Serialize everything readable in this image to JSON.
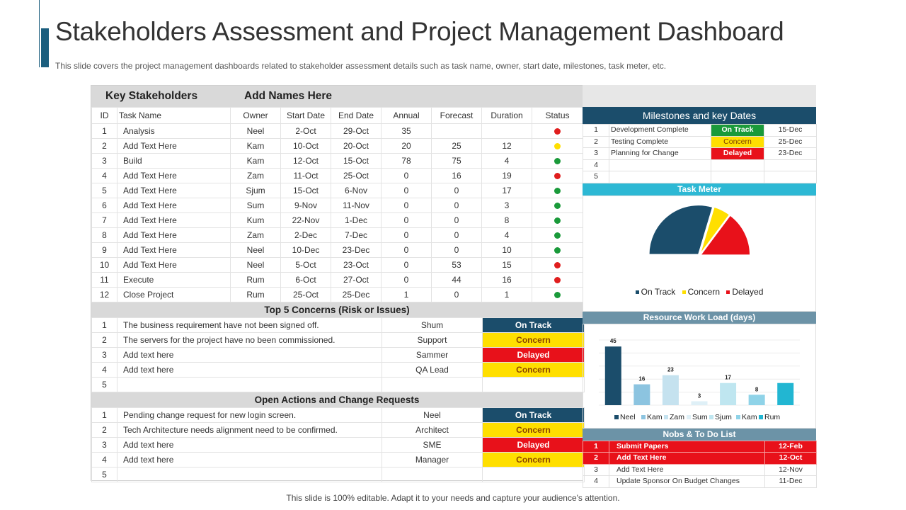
{
  "header": {
    "title": "Stakeholders Assessment and Project Management Dashboard",
    "subtitle": "This slide covers the project management dashboards related to stakeholder assessment details such as task name, owner, start date, milestones, task meter, etc."
  },
  "footer": {
    "text": "This slide is 100% editable. Adapt it to your needs and capture your audience's attention."
  },
  "stakeholders": {
    "label": "Key Stakeholders",
    "names": "Add Names Here",
    "columns": [
      "ID",
      "Task Name",
      "Owner",
      "Start Date",
      "End Date",
      "Annual",
      "Forecast",
      "Duration",
      "Status"
    ],
    "rows": [
      {
        "id": "1",
        "task": "Analysis",
        "owner": "Neel",
        "start": "2-Oct",
        "end": "29-Oct",
        "annual": "35",
        "forecast": "",
        "duration": "",
        "status": "red"
      },
      {
        "id": "2",
        "task": "Add Text Here",
        "owner": "Kam",
        "start": "10-Oct",
        "end": "20-Oct",
        "annual": "20",
        "forecast": "25",
        "duration": "12",
        "status": "yellow"
      },
      {
        "id": "3",
        "task": "Build",
        "owner": "Kam",
        "start": "12-Oct",
        "end": "15-Oct",
        "annual": "78",
        "forecast": "75",
        "duration": "4",
        "status": "green"
      },
      {
        "id": "4",
        "task": "Add Text Here",
        "owner": "Zam",
        "start": "11-Oct",
        "end": "25-Oct",
        "annual": "0",
        "forecast": "16",
        "duration": "19",
        "status": "red"
      },
      {
        "id": "5",
        "task": "Add Text Here",
        "owner": "Sjum",
        "start": "15-Oct",
        "end": "6-Nov",
        "annual": "0",
        "forecast": "0",
        "duration": "17",
        "status": "green"
      },
      {
        "id": "6",
        "task": "Add Text Here",
        "owner": "Sum",
        "start": "9-Nov",
        "end": "11-Nov",
        "annual": "0",
        "forecast": "0",
        "duration": "3",
        "status": "green"
      },
      {
        "id": "7",
        "task": "Add Text Here",
        "owner": "Kum",
        "start": "22-Nov",
        "end": "1-Dec",
        "annual": "0",
        "forecast": "0",
        "duration": "8",
        "status": "green"
      },
      {
        "id": "8",
        "task": "Add Text Here",
        "owner": "Zam",
        "start": "2-Dec",
        "end": "7-Dec",
        "annual": "0",
        "forecast": "0",
        "duration": "4",
        "status": "green"
      },
      {
        "id": "9",
        "task": "Add Text Here",
        "owner": "Neel",
        "start": "10-Dec",
        "end": "23-Dec",
        "annual": "0",
        "forecast": "0",
        "duration": "10",
        "status": "green"
      },
      {
        "id": "10",
        "task": "Add Text Here",
        "owner": "Neel",
        "start": "5-Oct",
        "end": "23-Oct",
        "annual": "0",
        "forecast": "53",
        "duration": "15",
        "status": "red"
      },
      {
        "id": "11",
        "task": "Execute",
        "owner": "Rum",
        "start": "6-Oct",
        "end": "27-Oct",
        "annual": "0",
        "forecast": "44",
        "duration": "16",
        "status": "red"
      },
      {
        "id": "12",
        "task": "Close Project",
        "owner": "Rum",
        "start": "25-Oct",
        "end": "25-Dec",
        "annual": "1",
        "forecast": "0",
        "duration": "1",
        "status": "green"
      }
    ]
  },
  "concerns": {
    "title": "Top 5 Concerns (Risk or Issues)",
    "rows": [
      {
        "id": "1",
        "text": "The business requirement have not been signed off.",
        "owner": "Shum",
        "status": "On Track",
        "kind": "ontrack"
      },
      {
        "id": "2",
        "text": "The servers for the project have no been commissioned.",
        "owner": "Support",
        "status": "Concern",
        "kind": "concern"
      },
      {
        "id": "3",
        "text": "Add text here",
        "owner": "Sammer",
        "status": "Delayed",
        "kind": "delayed"
      },
      {
        "id": "4",
        "text": "Add text here",
        "owner": "QA Lead",
        "status": "Concern",
        "kind": "concern"
      },
      {
        "id": "5",
        "text": "",
        "owner": "",
        "status": "",
        "kind": ""
      }
    ]
  },
  "actions": {
    "title": "Open Actions and Change Requests",
    "rows": [
      {
        "id": "1",
        "text": "Pending change request for new login screen.",
        "owner": "Neel",
        "status": "On Track",
        "kind": "ontrack"
      },
      {
        "id": "2",
        "text": "Tech Architecture needs alignment need to be confirmed.",
        "owner": "Architect",
        "status": "Concern",
        "kind": "concern"
      },
      {
        "id": "3",
        "text": "Add text here",
        "owner": "SME",
        "status": "Delayed",
        "kind": "delayed"
      },
      {
        "id": "4",
        "text": "Add text here",
        "owner": "Manager",
        "status": "Concern",
        "kind": "concern"
      },
      {
        "id": "5",
        "text": "",
        "owner": "",
        "status": "",
        "kind": ""
      }
    ]
  },
  "milestones": {
    "title": "Milestones and key Dates",
    "rows": [
      {
        "id": "1",
        "name": "Development Complete",
        "status": "On Track",
        "kind": "ontrack",
        "date": "15-Dec"
      },
      {
        "id": "2",
        "name": "Testing Complete",
        "status": "Concern",
        "kind": "concern",
        "date": "25-Dec"
      },
      {
        "id": "3",
        "name": "Planning  for Change",
        "status": "Delayed",
        "kind": "delayed",
        "date": "23-Dec"
      },
      {
        "id": "4",
        "name": "",
        "status": "",
        "kind": "",
        "date": ""
      },
      {
        "id": "5",
        "name": "",
        "status": "",
        "kind": "",
        "date": ""
      }
    ]
  },
  "task_meter": {
    "title": "Task Meter",
    "legend": [
      "On Track",
      "Concern",
      "Delayed"
    ]
  },
  "resource": {
    "title": "Resource Work Load (days)"
  },
  "todo": {
    "title": "Nobs & To Do List",
    "rows": [
      {
        "id": "1",
        "text": "Submit Papers",
        "date": "12-Feb",
        "highlight": true
      },
      {
        "id": "2",
        "text": "Add Text Here",
        "date": "12-Oct",
        "highlight": true
      },
      {
        "id": "3",
        "text": "Add Text Here",
        "date": "12-Nov",
        "highlight": false
      },
      {
        "id": "4",
        "text": "Update Sponsor On Budget Changes",
        "date": "11-Dec",
        "highlight": false
      }
    ]
  },
  "colors": {
    "on_track": "#1b4d6b",
    "concern": "#ffdf00",
    "delayed": "#e8111a",
    "status_green": "#1a9a3a",
    "status_yellow": "#ffdf00",
    "status_red": "#e01e1e"
  },
  "chart_data": [
    {
      "type": "pie",
      "title": "Task Meter",
      "categories": [
        "On Track",
        "Concern",
        "Delayed"
      ],
      "values": [
        8,
        1.5,
        4
      ],
      "colors": [
        "#1b4d6b",
        "#ffdf00",
        "#e8111a"
      ],
      "legend": "bottom",
      "half_donut": true
    },
    {
      "type": "bar",
      "title": "Resource Work Load (days)",
      "categories": [
        "Neel",
        "Kam",
        "Zam",
        "Sum",
        "Sjum",
        "Kam",
        "Rum"
      ],
      "values": [
        45,
        16,
        23,
        3,
        17,
        8,
        17
      ],
      "data_labels": [
        "45",
        "16",
        "23",
        "3",
        "17",
        "8",
        ""
      ],
      "colors": [
        "#1b4d6b",
        "#8cc4e0",
        "#c5e2ef",
        "#dff0f7",
        "#bfe6f0",
        "#8fd3e8",
        "#22b6d2"
      ],
      "ylim": [
        0,
        50
      ],
      "legend": "bottom",
      "grid": true
    }
  ]
}
